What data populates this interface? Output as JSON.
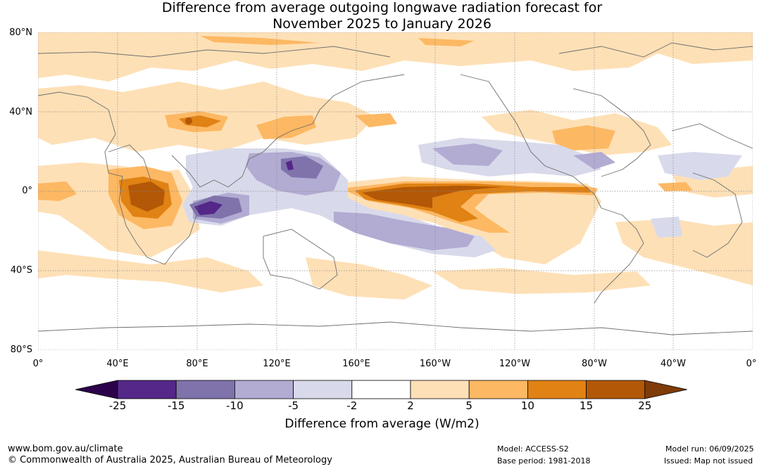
{
  "title_line1": "Difference from average outgoing longwave radiation forecast for",
  "title_line2": "November 2025 to January 2026",
  "lat_labels": [
    "80°N",
    "40°N",
    "0°",
    "40°S",
    "80°S"
  ],
  "lon_labels": [
    "0°",
    "40°E",
    "80°E",
    "120°E",
    "160°E",
    "160°W",
    "120°W",
    "80°W",
    "40°W",
    "0°"
  ],
  "colorbar": {
    "ticks": [
      "-25",
      "-15",
      "-10",
      "-5",
      "-2",
      "2",
      "5",
      "10",
      "15",
      "25"
    ],
    "colors": [
      "#2d004b",
      "#542788",
      "#8073ac",
      "#b2abd2",
      "#d8daeb",
      "#ffffff",
      "#fee0b6",
      "#fdb863",
      "#e08214",
      "#b35806",
      "#7f3b08"
    ],
    "title": "Difference from average (W/m2)"
  },
  "footer": {
    "website": "www.bom.gov.au/climate",
    "copyright": "© Commonwealth of Australia 2025, Australian Bureau of Meteorology",
    "model": "Model: ACCESS-S2",
    "base_period": "Base period: 1981-2018",
    "model_run": "Model run: 06/09/2025",
    "issued": "Issued: Map not issued"
  }
}
